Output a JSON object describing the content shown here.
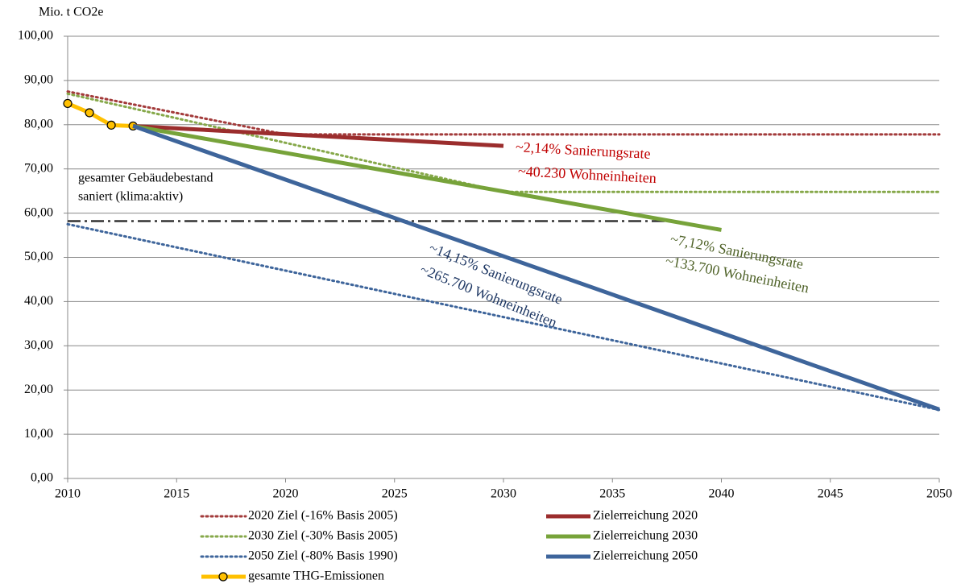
{
  "chart_data": {
    "type": "line",
    "y_label": "Mio. t CO2e",
    "xlim": [
      2010,
      2050
    ],
    "xticks": [
      2010,
      2015,
      2020,
      2025,
      2030,
      2035,
      2040,
      2045,
      2050
    ],
    "ylim": [
      0,
      100
    ],
    "yticks": [
      {
        "value": 0,
        "label": "0,00"
      },
      {
        "value": 10,
        "label": "10,00"
      },
      {
        "value": 20,
        "label": "20,00"
      },
      {
        "value": 30,
        "label": "30,00"
      },
      {
        "value": 40,
        "label": "40,00"
      },
      {
        "value": 50,
        "label": "50,00"
      },
      {
        "value": 60,
        "label": "60,00"
      },
      {
        "value": 70,
        "label": "70,00"
      },
      {
        "value": 80,
        "label": "80,00"
      },
      {
        "value": 90,
        "label": "90,00"
      },
      {
        "value": 100,
        "label": "100,00"
      }
    ],
    "grid": true,
    "series": [
      {
        "name": "2020 Ziel (-16% Basis 2005)",
        "color": "#a33b3b",
        "style": "dotted",
        "x": [
          2010,
          2020,
          2050
        ],
        "values": [
          87.5,
          77.8,
          77.8
        ]
      },
      {
        "name": "2030 Ziel (-30% Basis 2005)",
        "color": "#86a84a",
        "style": "dotted",
        "x": [
          2010,
          2030,
          2050
        ],
        "values": [
          87,
          64.8,
          64.8
        ]
      },
      {
        "name": "2050 Ziel (-80% Basis 1990)",
        "color": "#3e659b",
        "style": "dotted",
        "x": [
          2010,
          2050
        ],
        "values": [
          57.5,
          15.5
        ]
      },
      {
        "name": "gesamte THG-Emissionen",
        "color": "#ffc000",
        "style": "marker",
        "x": [
          2010,
          2011,
          2012,
          2013
        ],
        "values": [
          84.8,
          82.7,
          79.9,
          79.7
        ]
      },
      {
        "name": "Zielerreichung 2020",
        "color": "#9b2d2d",
        "style": "solid",
        "x": [
          2013,
          2030
        ],
        "values": [
          79.7,
          75.2
        ]
      },
      {
        "name": "Zielerreichung 2030",
        "color": "#77a33a",
        "style": "solid",
        "x": [
          2013,
          2040
        ],
        "values": [
          79.7,
          56.2
        ]
      },
      {
        "name": "Zielerreichung 2050",
        "color": "#3e659b",
        "style": "solid",
        "x": [
          2013,
          2050
        ],
        "values": [
          79.7,
          15.6
        ]
      }
    ],
    "reference_line": {
      "x": [
        2010,
        2037.5
      ],
      "values": [
        58.2,
        58.2
      ],
      "color": "#333333"
    },
    "annotations": [
      "~2,14% Sanierungsrate",
      "~40.230 Wohneinheiten",
      "~7,12% Sanierungsrate",
      "~133.700 Wohneinheiten",
      "~14,15% Sanierungsrate",
      "~265.700 Wohneinheiten",
      "gesamter Gebäudebestand",
      "saniert (klima:aktiv)"
    ]
  }
}
